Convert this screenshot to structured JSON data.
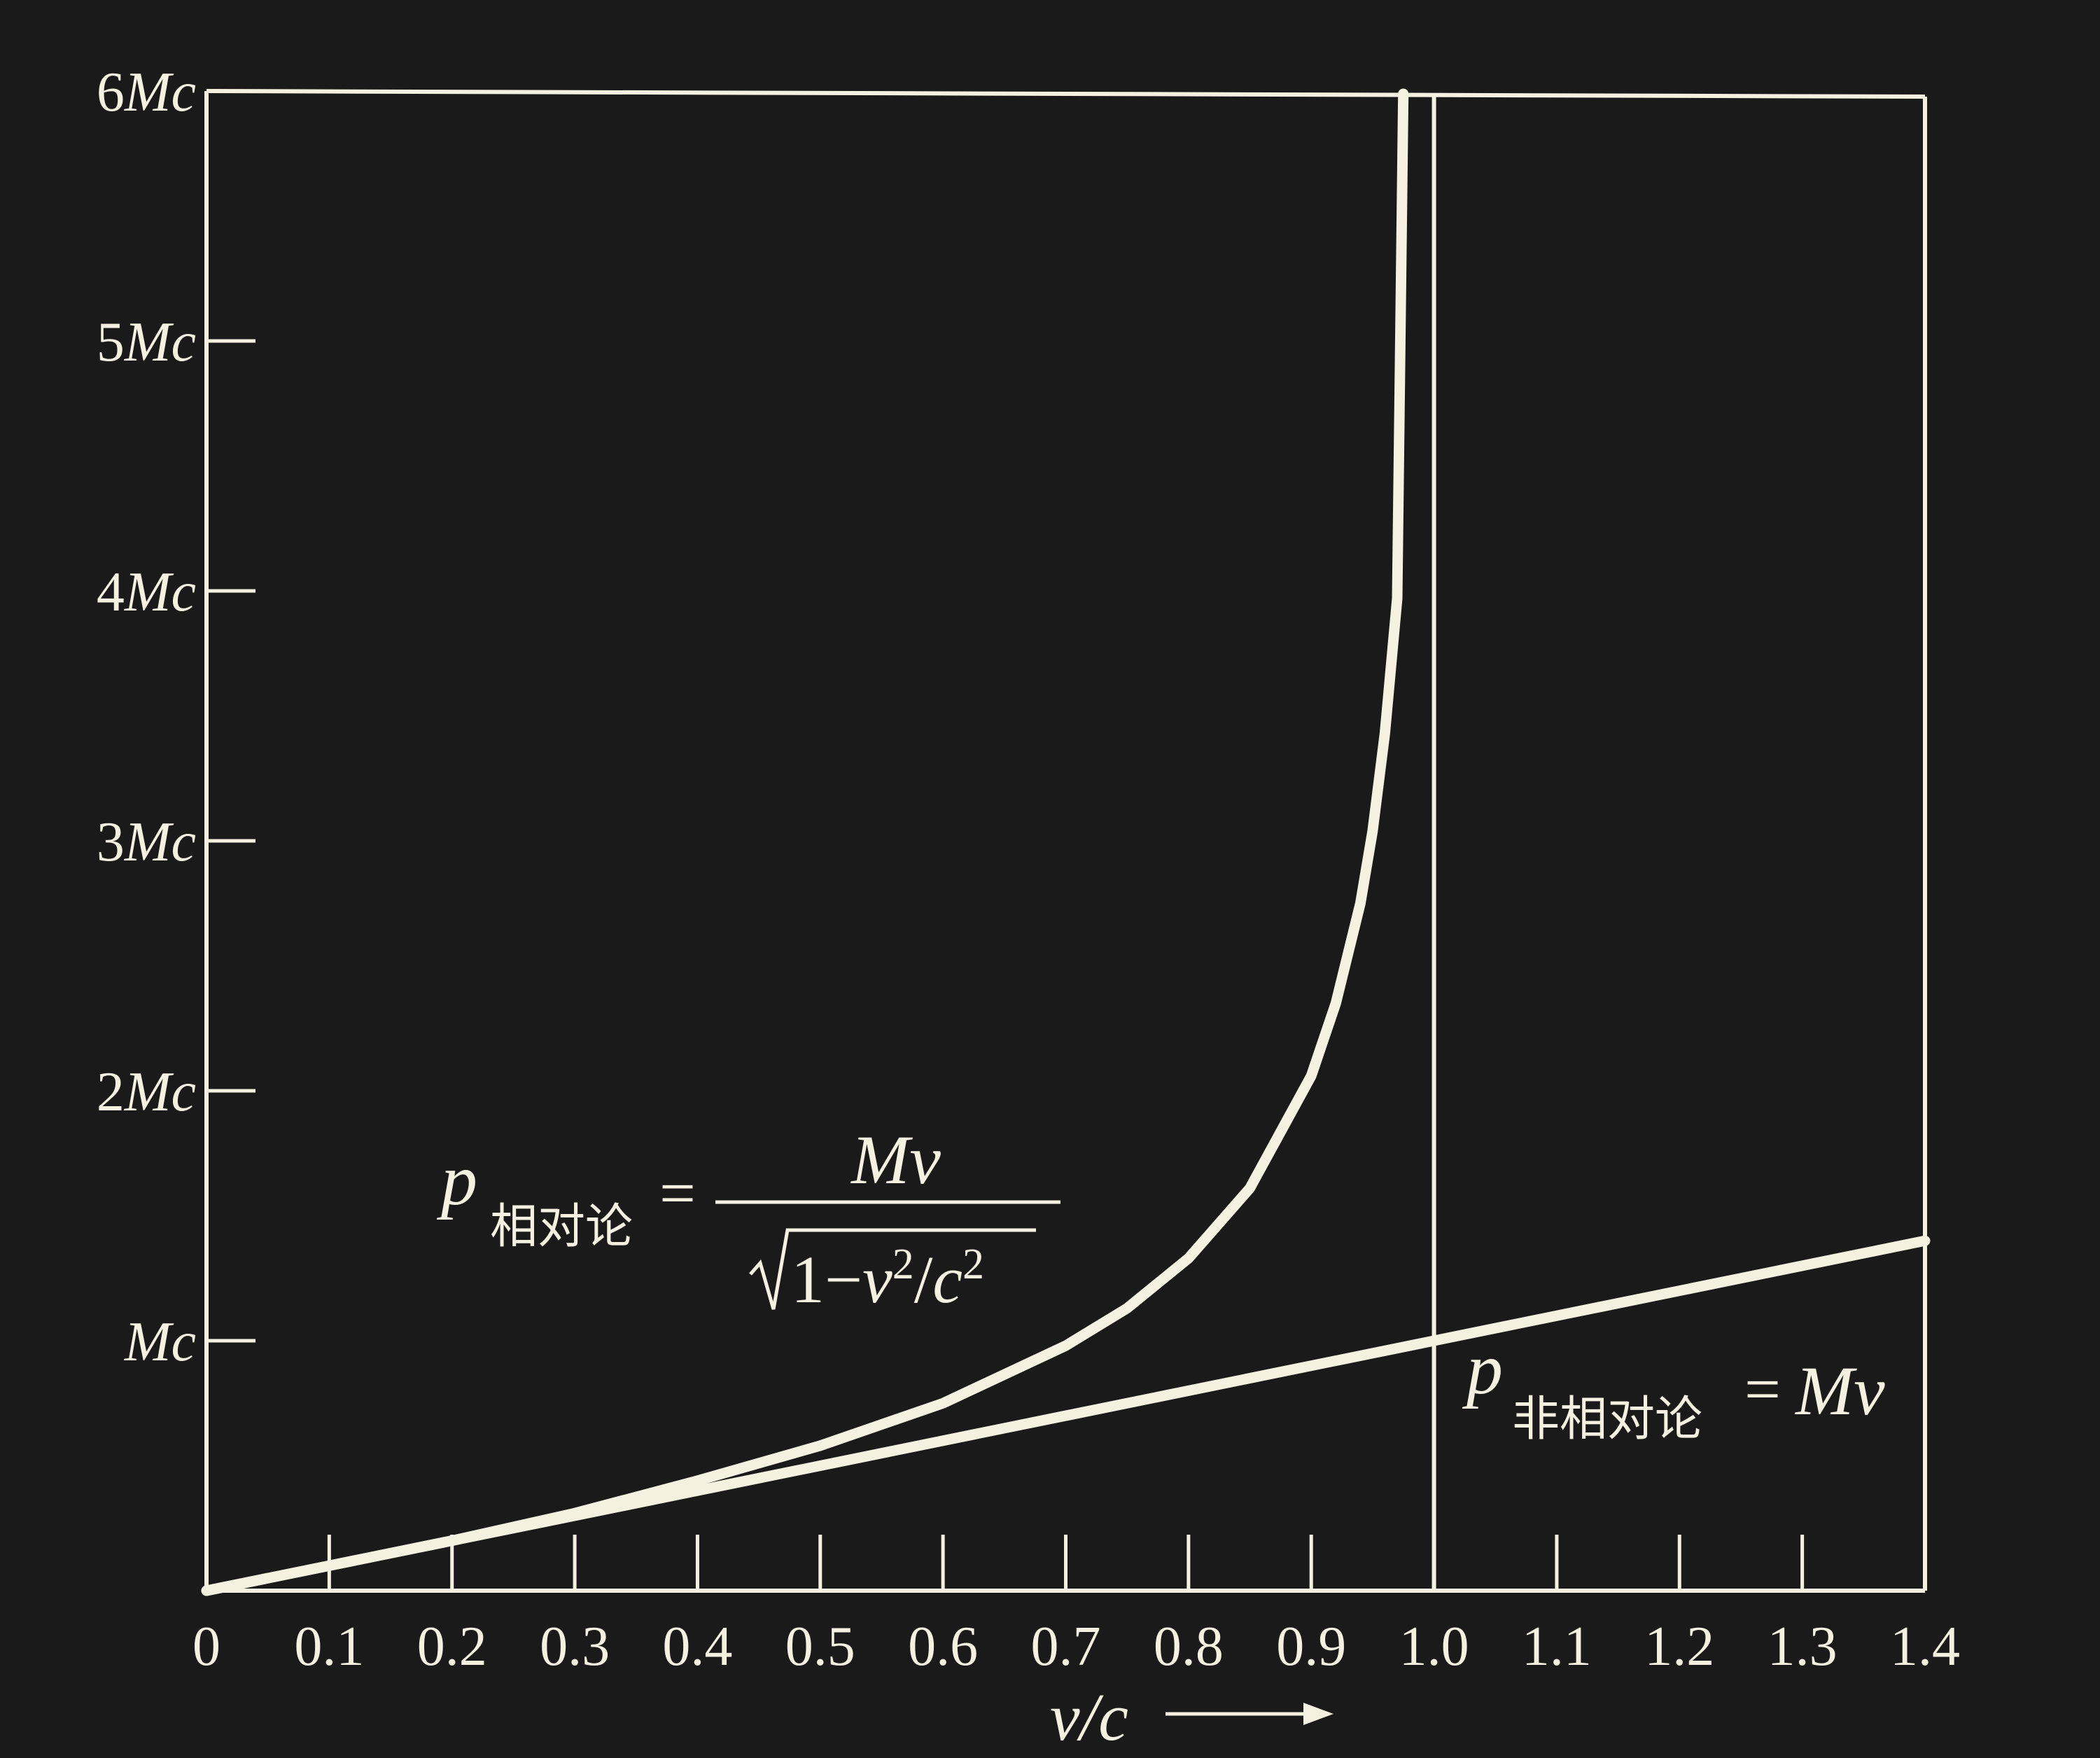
{
  "chart_data": {
    "type": "line",
    "title": "",
    "xlabel": "v/c",
    "ylabel": "",
    "xlim": [
      0,
      1.4
    ],
    "ylim": [
      0,
      6
    ],
    "x_ticks": [
      0,
      0.1,
      0.2,
      0.3,
      0.4,
      0.5,
      0.6,
      0.7,
      0.8,
      0.9,
      1.0,
      1.1,
      1.2,
      1.3,
      1.4
    ],
    "x_tick_labels": [
      "0",
      "0.1",
      "0.2",
      "0.3",
      "0.4",
      "0.5",
      "0.6",
      "0.7",
      "0.8",
      "0.9",
      "1.0",
      "1.1",
      "1.2",
      "1.3",
      "1.4"
    ],
    "y_ticks": [
      1,
      2,
      3,
      4,
      5,
      6
    ],
    "y_tick_labels": [
      {
        "num": "",
        "unit": "Mc"
      },
      {
        "num": "2",
        "unit": "Mc"
      },
      {
        "num": "3",
        "unit": "Mc"
      },
      {
        "num": "4",
        "unit": "Mc"
      },
      {
        "num": "5",
        "unit": "Mc"
      },
      {
        "num": "6",
        "unit": "Mc"
      }
    ],
    "vertical_reference_line": {
      "x": 1.0
    },
    "series": [
      {
        "name": "relativistic",
        "formula": "p = Mv / √(1 − v²/c²)",
        "x": [
          0,
          0.1,
          0.2,
          0.3,
          0.4,
          0.5,
          0.6,
          0.7,
          0.75,
          0.8,
          0.85,
          0.9,
          0.92,
          0.94,
          0.95,
          0.96,
          0.97
        ],
        "values": [
          0,
          0.1,
          0.2,
          0.31,
          0.44,
          0.58,
          0.75,
          0.98,
          1.13,
          1.33,
          1.61,
          2.06,
          2.35,
          2.75,
          3.04,
          3.43,
          3.97
        ]
      },
      {
        "name": "non-relativistic",
        "formula": "p = Mv",
        "x": [
          0,
          1.4
        ],
        "values": [
          0,
          1.4
        ]
      }
    ],
    "annotations": {
      "relativistic": {
        "p": "p",
        "subscript": "相对论",
        "eq": "=",
        "numerator": "Mv",
        "den_one": "1−",
        "den_v": "v",
        "den_exp1": "2",
        "den_slash": "/",
        "den_c": "c",
        "den_exp2": "2"
      },
      "non_relativistic": {
        "p": "p",
        "subscript": "非相对论",
        "eq": "=",
        "rhs": "Mv"
      }
    },
    "xlabel_parts": {
      "v": "v",
      "slash_c": "/c"
    }
  }
}
